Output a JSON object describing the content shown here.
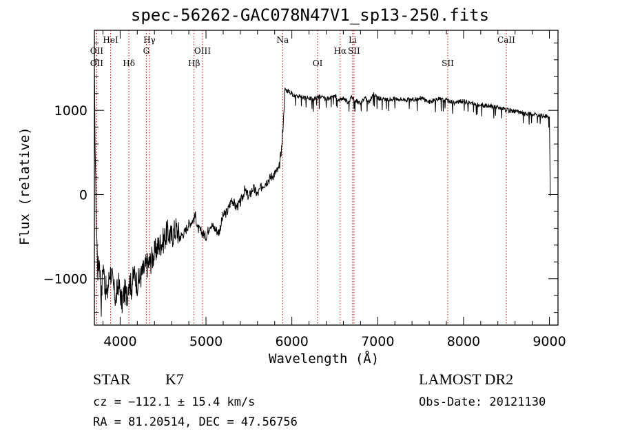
{
  "chart_data": {
    "type": "line",
    "title": "spec-56262-GAC078N47V1_sp13-250.fits",
    "xlabel": "Wavelength (Å)",
    "ylabel": "Flux (relative)",
    "xlim": [
      3700,
      9100
    ],
    "ylim": [
      -1550,
      1950
    ],
    "xticks": [
      4000,
      5000,
      6000,
      7000,
      8000,
      9000
    ],
    "yticks": [
      -1000,
      0,
      1000
    ],
    "xtick_labels": [
      "4000",
      "5000",
      "6000",
      "7000",
      "8000",
      "9000"
    ],
    "ytick_labels": [
      "−1000",
      "0",
      "1000"
    ],
    "series": [
      {
        "name": "flux",
        "x": [
          3700,
          3720,
          3740,
          3760,
          3780,
          3800,
          3820,
          3850,
          3880,
          3900,
          3920,
          3950,
          3980,
          4000,
          4020,
          4050,
          4080,
          4100,
          4130,
          4160,
          4200,
          4250,
          4300,
          4350,
          4400,
          4450,
          4500,
          4550,
          4600,
          4650,
          4700,
          4750,
          4800,
          4850,
          4880,
          4900,
          4950,
          5000,
          5050,
          5100,
          5150,
          5200,
          5250,
          5300,
          5350,
          5400,
          5450,
          5500,
          5550,
          5600,
          5650,
          5700,
          5750,
          5800,
          5850,
          5880,
          5900,
          5920,
          5950,
          6000,
          6050,
          6100,
          6150,
          6200,
          6250,
          6300,
          6350,
          6400,
          6450,
          6500,
          6550,
          6600,
          6650,
          6700,
          6750,
          6800,
          6850,
          6900,
          6950,
          7000,
          7100,
          7200,
          7300,
          7400,
          7500,
          7600,
          7700,
          7800,
          7900,
          8000,
          8100,
          8200,
          8300,
          8400,
          8500,
          8600,
          8700,
          8800,
          8900,
          8950,
          9000,
          9010
        ],
        "y": [
          1350,
          -250,
          -900,
          -750,
          -1300,
          -800,
          -1050,
          -1200,
          -900,
          -950,
          -1100,
          -1250,
          -1050,
          -1150,
          -1300,
          -1150,
          -1200,
          -1000,
          -1100,
          -950,
          -1050,
          -950,
          -850,
          -800,
          -700,
          -600,
          -550,
          -450,
          -500,
          -400,
          -500,
          -450,
          -350,
          -300,
          -250,
          -400,
          -450,
          -500,
          -350,
          -400,
          -450,
          -250,
          -200,
          -50,
          -150,
          -100,
          50,
          -30,
          80,
          0,
          100,
          150,
          200,
          250,
          300,
          550,
          850,
          1250,
          1230,
          1200,
          1160,
          1180,
          1140,
          1150,
          1120,
          1170,
          1150,
          1130,
          1140,
          1180,
          1120,
          1150,
          1100,
          1160,
          1110,
          1080,
          1150,
          1090,
          1200,
          1150,
          1120,
          1140,
          1130,
          1120,
          1150,
          1100,
          1130,
          1120,
          1090,
          1110,
          1080,
          1060,
          1050,
          1040,
          1000,
          990,
          960,
          950,
          940,
          930,
          920,
          -20
        ]
      }
    ],
    "line_markers": [
      {
        "label": "OII",
        "x": 3727,
        "row": 2
      },
      {
        "label": "OII",
        "x": 3727,
        "row": 3
      },
      {
        "label": "HeI",
        "x": 3889,
        "row": 1
      },
      {
        "label": "Hδ",
        "x": 4102,
        "row": 3
      },
      {
        "label": "Hγ",
        "x": 4341,
        "row": 1
      },
      {
        "label": "G",
        "x": 4305,
        "row": 2
      },
      {
        "label": "Hβ",
        "x": 4861,
        "row": 3
      },
      {
        "label": "OIII",
        "x": 4959,
        "row": 2
      },
      {
        "label": "Na",
        "x": 5893,
        "row": 1
      },
      {
        "label": "OI",
        "x": 6300,
        "row": 3
      },
      {
        "label": "Hα",
        "x": 6563,
        "row": 2
      },
      {
        "label": "Li",
        "x": 6708,
        "row": 1
      },
      {
        "label": "SII",
        "x": 6724,
        "row": 2
      },
      {
        "label": "SII",
        "x": 7816,
        "row": 3
      },
      {
        "label": "CaII",
        "x": 8498,
        "row": 1
      }
    ],
    "grid": false
  },
  "footer": {
    "class_label": "STAR",
    "subclass": "K7",
    "cz": "cz = −112.1 ± 15.4 km/s",
    "coords": "RA =  81.20514, DEC =  47.56756",
    "survey": "LAMOST DR2",
    "obs_date": "Obs-Date: 20121130"
  },
  "colors": {
    "axis": "#000000",
    "marker": "#c00000",
    "background": "#ffffff"
  }
}
